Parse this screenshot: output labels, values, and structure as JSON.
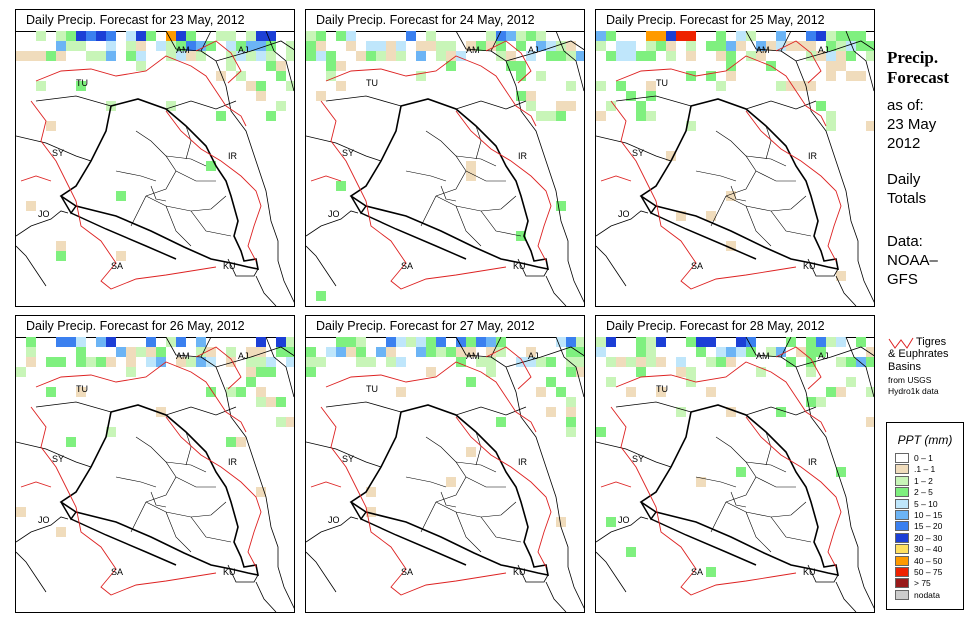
{
  "panels": [
    {
      "title": "Daily Precip. Forecast for  23 May, 2012"
    },
    {
      "title": "Daily Precip. Forecast for  24 May, 2012"
    },
    {
      "title": "Daily Precip. Forecast for  25 May, 2012"
    },
    {
      "title": "Daily Precip. Forecast for  26 May, 2012"
    },
    {
      "title": "Daily Precip. Forecast for  27 May, 2012"
    },
    {
      "title": "Daily Precip. Forecast for  28 May, 2012"
    }
  ],
  "country_labels": [
    "AM",
    "AJ",
    "TU",
    "SY",
    "IR",
    "JO",
    "SA",
    "KU"
  ],
  "sidebar": {
    "title_line1": "Precip.",
    "title_line2": "Forecast",
    "asof_label": "as of:",
    "asof_date_line1": "23 May",
    "asof_date_line2": "2012",
    "totals_line1": "Daily",
    "totals_line2": "Totals",
    "data_line1": "Data:",
    "data_line2": "NOAA–",
    "data_line3": "GFS"
  },
  "basin_key": {
    "line1": "Tigres",
    "line2": "& Euphrates",
    "line3": "Basins",
    "line4": "from USGS",
    "line5": "Hydro1k data",
    "color": "#dd2222"
  },
  "legend": {
    "title": "PPT (mm)",
    "items": [
      {
        "label": "0 – 1",
        "color": "#ffffff"
      },
      {
        "label": ".1 – 1",
        "color": "#f0dcbc"
      },
      {
        "label": "1 – 2",
        "color": "#c8f5b8"
      },
      {
        "label": "2 – 5",
        "color": "#7ff07f"
      },
      {
        "label": "5 – 10",
        "color": "#bfe6fb"
      },
      {
        "label": "10 – 15",
        "color": "#6cb4f5"
      },
      {
        "label": "15 – 20",
        "color": "#3b80ef"
      },
      {
        "label": "20 – 30",
        "color": "#1c3fd6"
      },
      {
        "label": "30 – 40",
        "color": "#ffe060"
      },
      {
        "label": "40 – 50",
        "color": "#ff9a00"
      },
      {
        "label": "50 – 75",
        "color": "#ee2200"
      },
      {
        "label": "> 75",
        "color": "#991a1a"
      },
      {
        "label": "nodata",
        "color": "#cccccc"
      }
    ]
  }
}
